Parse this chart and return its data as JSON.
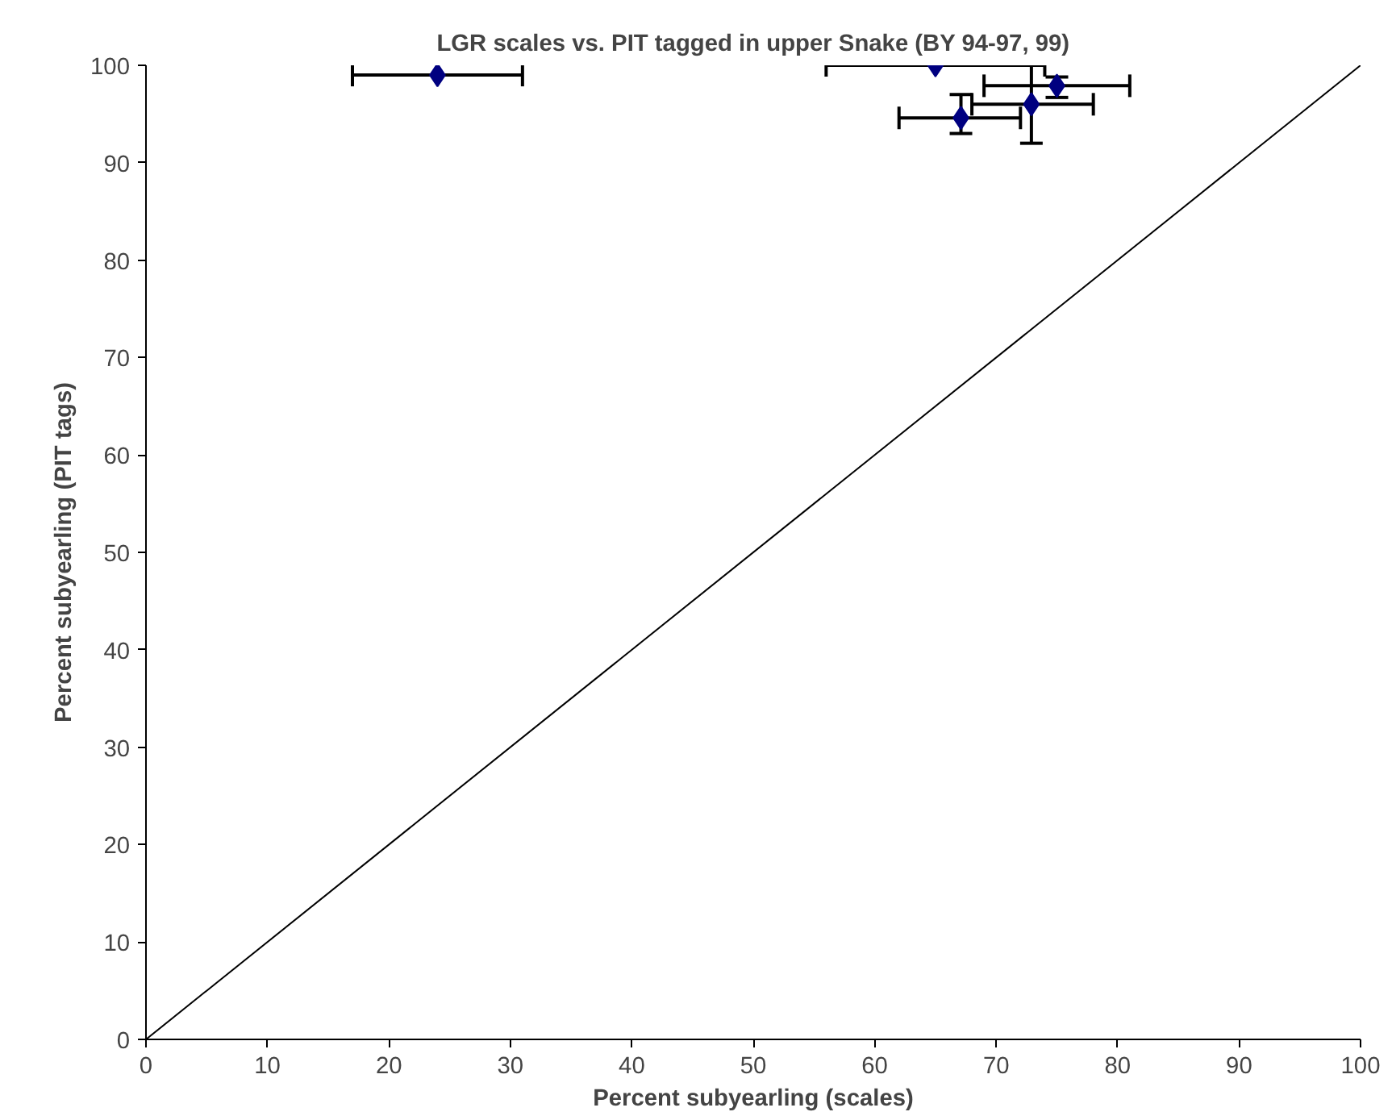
{
  "chart_data": {
    "type": "scatter",
    "title": "LGR scales vs. PIT tagged in upper Snake (BY 94-97, 99)",
    "xlabel": "Percent subyearling (scales)",
    "ylabel": "Percent subyearling (PIT tags)",
    "xlim": [
      0,
      100
    ],
    "ylim": [
      0,
      100
    ],
    "xticks": [
      0,
      10,
      20,
      30,
      40,
      50,
      60,
      70,
      80,
      90,
      100
    ],
    "yticks": [
      0,
      10,
      20,
      30,
      40,
      50,
      60,
      70,
      80,
      90,
      100
    ],
    "grid": false,
    "series": [
      {
        "color": "#000080",
        "marker": "diamond",
        "x": [
          24,
          65,
          75,
          72.9,
          67.1
        ],
        "values": [
          99,
          100,
          97.9,
          96,
          94.6
        ],
        "xerrors": [
          [
            17,
            31
          ],
          [
            56,
            74
          ],
          [
            69,
            81
          ],
          [
            68,
            78
          ],
          [
            62,
            72
          ]
        ],
        "errors": [
          null,
          null,
          [
            96.7,
            98.8
          ],
          [
            92,
            100
          ],
          [
            93,
            97
          ]
        ]
      },
      {
        "type": "line",
        "color": "#000000",
        "x": [
          0,
          100
        ],
        "values": [
          0,
          100
        ]
      }
    ]
  }
}
